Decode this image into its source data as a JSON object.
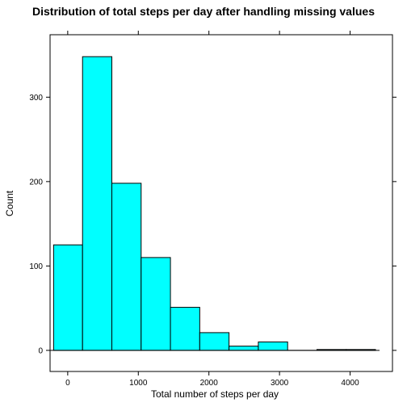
{
  "chart_data": {
    "type": "bar",
    "title": "Distribution of total steps per day after handling missing values",
    "xlabel": "Total number of steps per day",
    "ylabel": "Count",
    "xlim": [
      -250,
      4600
    ],
    "ylim": [
      -25,
      374
    ],
    "x_ticks": [
      0,
      1000,
      2000,
      3000,
      4000
    ],
    "y_ticks": [
      0,
      100,
      200,
      300
    ],
    "bins": [
      {
        "x0": -200,
        "x1": 210,
        "value": 125
      },
      {
        "x0": 210,
        "x1": 625,
        "value": 348
      },
      {
        "x0": 625,
        "x1": 1040,
        "value": 198
      },
      {
        "x0": 1040,
        "x1": 1455,
        "value": 110
      },
      {
        "x0": 1455,
        "x1": 1870,
        "value": 51
      },
      {
        "x0": 1870,
        "x1": 2285,
        "value": 21
      },
      {
        "x0": 2285,
        "x1": 2700,
        "value": 5
      },
      {
        "x0": 2700,
        "x1": 3115,
        "value": 10
      },
      {
        "x0": 3115,
        "x1": 3530,
        "value": 0
      },
      {
        "x0": 3530,
        "x1": 3945,
        "value": 1
      },
      {
        "x0": 3945,
        "x1": 4360,
        "value": 1
      }
    ],
    "bar_color": "#00ffff",
    "grid": false,
    "legend": false
  }
}
